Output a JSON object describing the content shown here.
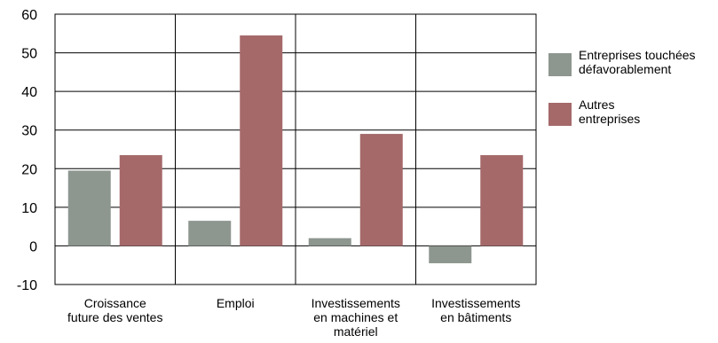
{
  "chart_data": {
    "type": "bar",
    "categories": [
      [
        "Croissance",
        "future des ventes"
      ],
      [
        "Emploi"
      ],
      [
        "Investissements",
        "en machines et",
        "matériel"
      ],
      [
        "Investissements",
        "en bâtiments"
      ]
    ],
    "series": [
      {
        "name": "Entreprises touchées défavorablement",
        "name_lines": [
          "Entreprises touchées",
          "défavorablement"
        ],
        "color": "#8e9690",
        "values": [
          19.5,
          6.5,
          2,
          -4.5
        ]
      },
      {
        "name": "Autres entreprises",
        "name_lines": [
          "Autres",
          "entreprises"
        ],
        "color": "#a5696a",
        "values": [
          23.5,
          54.5,
          29,
          23.5
        ]
      }
    ],
    "ylim": [
      -10,
      60
    ],
    "yticks": [
      -10,
      0,
      10,
      20,
      30,
      40,
      50,
      60
    ],
    "grid": true,
    "legend": "right",
    "title": "",
    "xlabel": "",
    "ylabel": ""
  }
}
